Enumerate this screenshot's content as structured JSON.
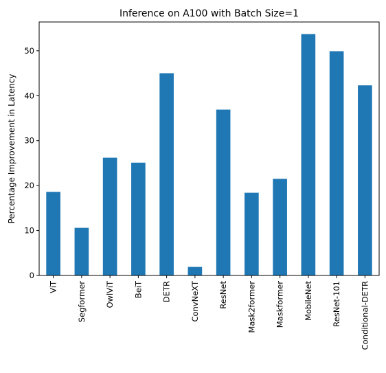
{
  "chart_data": {
    "type": "bar",
    "title": "Inference on A100 with Batch Size=1",
    "xlabel": "",
    "ylabel": "Percentage Improvement in Latency",
    "categories": [
      "ViT",
      "Segformer",
      "OwlViT",
      "BeiT",
      "DETR",
      "ConvNeXT",
      "ResNet",
      "Mask2former",
      "Maskformer",
      "MobileNet",
      "ResNet-101",
      "Conditional-DETR"
    ],
    "values": [
      18.6,
      10.6,
      26.2,
      25.1,
      45.0,
      1.9,
      36.9,
      18.4,
      21.5,
      53.7,
      49.9,
      42.3
    ],
    "ylim": [
      0,
      56.4
    ],
    "yticks": [
      0,
      10,
      20,
      30,
      40,
      50
    ],
    "grid": false,
    "bar_color": "#1f77b4"
  }
}
